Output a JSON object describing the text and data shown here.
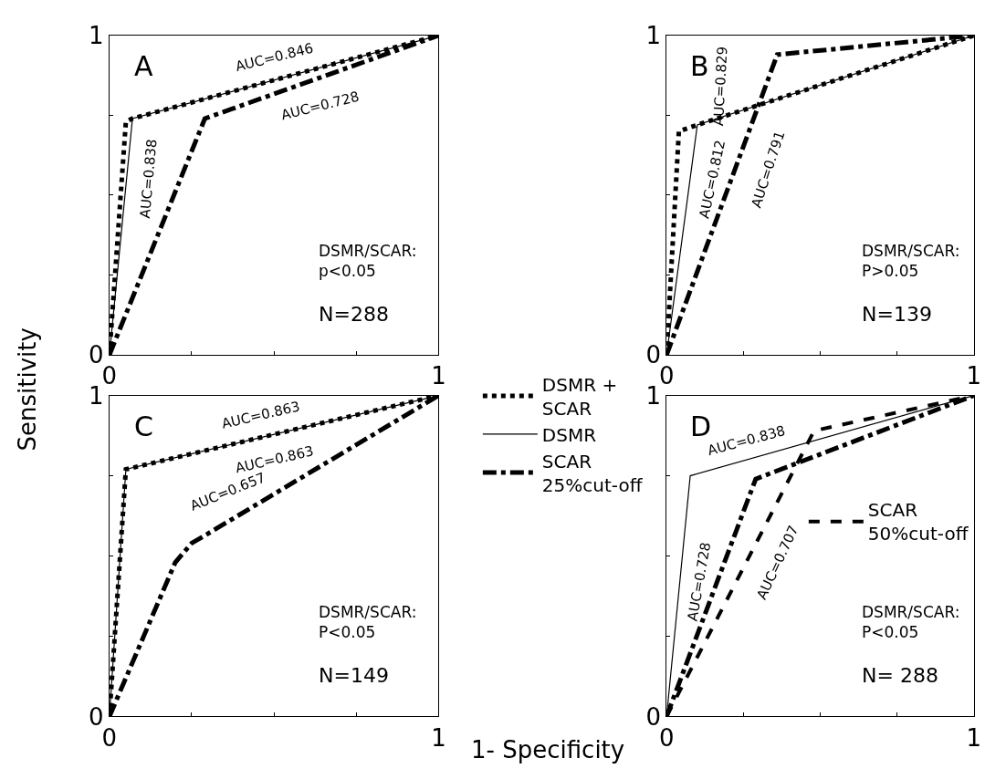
{
  "chart_data": [
    {
      "type": "line",
      "title": "A",
      "ylabel": "Sensitivity",
      "xlim": [
        0,
        1
      ],
      "ylim": [
        0,
        1
      ],
      "xticks": [
        0,
        {
          "value": 0.25,
          "label": null
        },
        {
          "value": 0.5,
          "label": null
        },
        {
          "value": 0.75,
          "label": null
        },
        1
      ],
      "yticks": [
        0,
        {
          "value": 0.25,
          "label": null
        },
        {
          "value": 0.5,
          "label": null
        },
        {
          "value": 0.75,
          "label": null
        },
        1
      ],
      "legend": "bottom right",
      "marker": "none",
      "series": [
        {
          "name": "DSMR +\nSCAR",
          "color": "#000000",
          "line_style": "dotted",
          "x": [
            0,
            0.05,
            0.07,
            1
          ],
          "values": [
            0,
            0.73,
            0.74,
            1
          ]
        },
        {
          "name": "DSMR",
          "color": "#000000",
          "line_style": "solid",
          "x": [
            0,
            0.07,
            1
          ],
          "values": [
            0,
            0.74,
            1
          ]
        },
        {
          "name": "SCAR\n25%cut-off",
          "color": "#000000",
          "line_style": "dashdot",
          "x": [
            0,
            0.29,
            1
          ],
          "values": [
            0,
            0.74,
            1
          ]
        }
      ],
      "annotations": [
        "AUC=0.846",
        "AUC=0.728",
        "AUC=0.838",
        "DSMR/SCAR:\np<0.05",
        "N=288"
      ]
    },
    {
      "type": "line",
      "title": "B",
      "xlim": [
        0,
        1
      ],
      "ylim": [
        0,
        1
      ],
      "xticks": [
        0,
        {
          "value": 0.25,
          "label": null
        },
        {
          "value": 0.5,
          "label": null
        },
        {
          "value": 0.75,
          "label": null
        },
        1
      ],
      "yticks": [
        0,
        {
          "value": 0.25,
          "label": null
        },
        {
          "value": 0.5,
          "label": null
        },
        {
          "value": 0.75,
          "label": null
        },
        1
      ],
      "marker": "none",
      "series": [
        {
          "name": "DSMR +\nSCAR",
          "color": "#000000",
          "line_style": "dotted",
          "x": [
            0,
            0.04,
            0.1,
            1
          ],
          "values": [
            0,
            0.7,
            0.72,
            1
          ]
        },
        {
          "name": "DSMR",
          "color": "#000000",
          "line_style": "solid",
          "x": [
            0,
            0.1,
            1
          ],
          "values": [
            0,
            0.72,
            1
          ]
        },
        {
          "name": "SCAR\n25%cut-off",
          "color": "#000000",
          "line_style": "dashdot",
          "x": [
            0,
            0.36,
            1
          ],
          "values": [
            0,
            0.94,
            1
          ]
        }
      ],
      "annotations": [
        "AUC=0.829",
        "AUC=0.812",
        "AUC=0.791",
        "DSMR/SCAR:\nP>0.05",
        "N=139"
      ]
    },
    {
      "type": "line",
      "title": "C",
      "xlabel": "1- Specificity",
      "xlim": [
        0,
        1
      ],
      "ylim": [
        0,
        1
      ],
      "xticks": [
        0,
        {
          "value": 0.25,
          "label": null
        },
        {
          "value": 0.5,
          "label": null
        },
        {
          "value": 0.75,
          "label": null
        },
        1
      ],
      "yticks": [
        0,
        {
          "value": 0.25,
          "label": null
        },
        {
          "value": 0.5,
          "label": null
        },
        {
          "value": 0.75,
          "label": null
        },
        1
      ],
      "marker": "none",
      "series": [
        {
          "name": "DSMR +\nSCAR",
          "color": "#000000",
          "line_style": "dotted",
          "x": [
            0,
            0.05,
            1
          ],
          "values": [
            0,
            0.77,
            1
          ]
        },
        {
          "name": "DSMR",
          "color": "#000000",
          "line_style": "solid",
          "x": [
            0,
            0.05,
            1
          ],
          "values": [
            0,
            0.77,
            1
          ]
        },
        {
          "name": "SCAR\n25%cut-off",
          "color": "#000000",
          "line_style": "dashdot",
          "x": [
            0,
            0.2,
            0.25,
            0.3,
            1
          ],
          "values": [
            0,
            0.48,
            0.54,
            0.57,
            1
          ]
        }
      ],
      "annotations": [
        "AUC=0.863",
        "AUC=0.863",
        "AUC=0.657",
        "DSMR/SCAR:\nP<0.05",
        "N=149"
      ]
    },
    {
      "type": "line",
      "title": "D",
      "xlim": [
        0,
        1
      ],
      "ylim": [
        0,
        1
      ],
      "xticks": [
        0,
        {
          "value": 0.25,
          "label": null
        },
        {
          "value": 0.5,
          "label": null
        },
        {
          "value": 0.75,
          "label": null
        },
        1
      ],
      "yticks": [
        0,
        {
          "value": 0.25,
          "label": null
        },
        {
          "value": 0.5,
          "label": null
        },
        {
          "value": 0.75,
          "label": null
        },
        1
      ],
      "legend": "right",
      "marker": "none",
      "series": [
        {
          "name": "DSMR",
          "color": "#000000",
          "line_style": "solid",
          "x": [
            0,
            0.077,
            1
          ],
          "values": [
            0,
            0.75,
            1
          ]
        },
        {
          "name": "SCAR\n25%cut-off",
          "color": "#000000",
          "line_style": "dashdot",
          "x": [
            0,
            0.29,
            1
          ],
          "values": [
            0,
            0.74,
            1
          ]
        },
        {
          "name": "SCAR\n50%cut-off",
          "color": "#000000",
          "line_style": "dashed",
          "x": [
            0,
            0.48,
            1
          ],
          "values": [
            0,
            0.89,
            1
          ]
        }
      ],
      "annotations": [
        "AUC=0.838",
        "AUC=0.728",
        "AUC=0.707",
        "DSMR/SCAR:\nP<0.05",
        "N= 288"
      ]
    }
  ]
}
